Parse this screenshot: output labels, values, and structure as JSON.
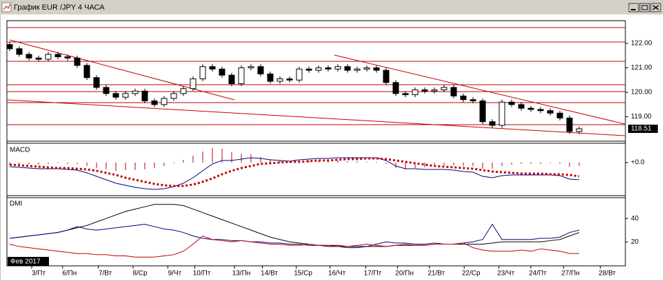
{
  "window_title": "График EUR /JPY  4 ЧАСА",
  "chart_data": [
    {
      "type": "candlestick",
      "up_color": "#ffffff",
      "down_color": "#000000",
      "xlim": [
        0,
        64
      ],
      "ylim": [
        118.06,
        122.87
      ],
      "yticks": [
        {
          "value": 122,
          "label": "122.00"
        },
        {
          "value": 121,
          "label": "121.00"
        },
        {
          "value": 120,
          "label": "120.00"
        },
        {
          "value": 119,
          "label": "119.00"
        }
      ],
      "open": [
        121.95,
        121.78,
        121.55,
        121.4,
        121.35,
        121.55,
        121.45,
        121.4,
        121.1,
        120.6,
        120.2,
        119.95,
        119.8,
        119.95,
        120.05,
        119.65,
        119.5,
        119.75,
        119.95,
        120.15,
        120.55,
        121.05,
        120.95,
        120.7,
        120.35,
        121.0,
        121.05,
        120.75,
        120.45,
        120.55,
        120.5,
        120.95,
        120.9,
        121.0,
        120.95,
        121.05,
        120.9,
        120.95,
        121.0,
        120.9,
        120.4,
        119.95,
        119.9,
        120.1,
        120.05,
        120.1,
        120.2,
        119.85,
        119.7,
        119.65,
        118.8,
        118.65,
        119.6,
        119.5,
        119.35,
        119.3,
        119.25,
        119.15,
        118.95,
        118.4
      ],
      "high": [
        122.05,
        121.88,
        121.65,
        121.5,
        121.65,
        121.65,
        121.55,
        121.5,
        121.2,
        120.7,
        120.3,
        120.05,
        120.05,
        120.15,
        120.15,
        119.75,
        119.85,
        120.05,
        120.25,
        120.65,
        121.15,
        121.15,
        121.05,
        120.8,
        121.1,
        121.15,
        121.15,
        120.85,
        120.65,
        120.65,
        121.05,
        121.05,
        121.1,
        121.1,
        121.15,
        121.15,
        121.05,
        121.1,
        121.1,
        121.0,
        120.5,
        120.05,
        120.2,
        120.2,
        120.2,
        120.3,
        120.3,
        119.95,
        119.8,
        119.75,
        118.9,
        119.7,
        119.7,
        119.6,
        119.45,
        119.4,
        119.35,
        119.25,
        119.05,
        118.61
      ],
      "low": [
        121.68,
        121.45,
        121.3,
        121.25,
        121.25,
        121.35,
        121.3,
        121.0,
        120.5,
        120.1,
        119.85,
        119.7,
        119.7,
        119.85,
        119.55,
        119.4,
        119.4,
        119.65,
        119.85,
        120.05,
        120.45,
        120.85,
        120.6,
        120.25,
        120.25,
        120.9,
        120.65,
        120.35,
        120.35,
        120.4,
        120.4,
        120.8,
        120.8,
        120.85,
        120.85,
        120.8,
        120.8,
        120.85,
        120.8,
        120.3,
        119.85,
        119.8,
        119.8,
        119.95,
        119.95,
        120.0,
        119.75,
        119.6,
        119.55,
        118.7,
        118.55,
        118.55,
        119.4,
        119.25,
        119.2,
        119.15,
        119.05,
        118.85,
        118.3,
        118.3
      ],
      "close": [
        121.78,
        121.55,
        121.4,
        121.35,
        121.55,
        121.45,
        121.4,
        121.1,
        120.6,
        120.2,
        119.95,
        119.8,
        119.95,
        120.05,
        119.65,
        119.5,
        119.75,
        119.95,
        120.15,
        120.55,
        121.05,
        120.95,
        120.7,
        120.35,
        121.0,
        121.05,
        120.75,
        120.45,
        120.55,
        120.5,
        120.95,
        120.9,
        121.0,
        120.95,
        121.05,
        120.9,
        120.95,
        121.0,
        120.9,
        120.4,
        119.95,
        119.9,
        120.1,
        120.05,
        120.1,
        120.2,
        119.85,
        119.7,
        119.65,
        118.8,
        118.65,
        119.6,
        119.5,
        119.35,
        119.3,
        119.25,
        119.15,
        118.95,
        118.4,
        118.51
      ]
    },
    {
      "type": "line",
      "title": "MACD",
      "ylim": [
        -0.46,
        0.24
      ],
      "yticks": [
        {
          "value": 0,
          "label": "+0.0"
        }
      ],
      "histogram": {
        "color": "#c00000",
        "values": [
          -0.03,
          -0.03,
          -0.03,
          -0.03,
          -0.02,
          -0.01,
          -0.02,
          -0.02,
          -0.05,
          -0.08,
          -0.1,
          -0.12,
          -0.11,
          -0.11,
          -0.1,
          -0.08,
          -0.05,
          -0.01,
          0.04,
          0.1,
          0.16,
          0.21,
          0.2,
          0.15,
          0.13,
          0.12,
          0.08,
          0.05,
          0.03,
          0.01,
          0.03,
          0.03,
          0.03,
          0.03,
          0.03,
          0.02,
          0.02,
          0.01,
          0.01,
          -0.02,
          -0.08,
          -0.1,
          -0.08,
          -0.07,
          -0.05,
          -0.04,
          -0.04,
          -0.05,
          -0.05,
          -0.09,
          -0.09,
          -0.05,
          -0.03,
          -0.02,
          -0.02,
          -0.02,
          -0.01,
          -0.02,
          -0.06,
          -0.05
        ]
      },
      "series": [
        {
          "color": "#000080",
          "values": [
            -0.06,
            -0.07,
            -0.08,
            -0.09,
            -0.09,
            -0.09,
            -0.1,
            -0.11,
            -0.15,
            -0.2,
            -0.25,
            -0.3,
            -0.33,
            -0.36,
            -0.38,
            -0.39,
            -0.38,
            -0.35,
            -0.3,
            -0.22,
            -0.12,
            -0.02,
            0.03,
            0.03,
            0.05,
            0.07,
            0.06,
            0.04,
            0.03,
            0.02,
            0.04,
            0.05,
            0.06,
            0.06,
            0.07,
            0.07,
            0.07,
            0.07,
            0.07,
            0.03,
            -0.05,
            -0.09,
            -0.09,
            -0.1,
            -0.1,
            -0.1,
            -0.11,
            -0.13,
            -0.14,
            -0.2,
            -0.22,
            -0.19,
            -0.18,
            -0.18,
            -0.18,
            -0.18,
            -0.18,
            -0.19,
            -0.24,
            -0.25
          ]
        },
        {
          "color": "#c00000",
          "dotted": true,
          "values": [
            -0.03,
            -0.04,
            -0.05,
            -0.06,
            -0.07,
            -0.08,
            -0.08,
            -0.09,
            -0.1,
            -0.12,
            -0.15,
            -0.18,
            -0.22,
            -0.25,
            -0.28,
            -0.31,
            -0.33,
            -0.34,
            -0.34,
            -0.32,
            -0.28,
            -0.23,
            -0.17,
            -0.12,
            -0.08,
            -0.05,
            -0.02,
            -0.01,
            0,
            0.01,
            0.01,
            0.02,
            0.03,
            0.03,
            0.04,
            0.05,
            0.05,
            0.06,
            0.06,
            0.05,
            0.03,
            0.01,
            -0.01,
            -0.03,
            -0.05,
            -0.06,
            -0.07,
            -0.08,
            -0.09,
            -0.11,
            -0.13,
            -0.14,
            -0.15,
            -0.16,
            -0.16,
            -0.16,
            -0.17,
            -0.17,
            -0.18,
            -0.2
          ]
        }
      ]
    },
    {
      "type": "line",
      "title": "DMI",
      "ylim": [
        3,
        56
      ],
      "yticks": [
        40,
        20
      ],
      "period_label": "Фев 2017",
      "xticks": [
        {
          "value": 3,
          "label": "3/Пт"
        },
        {
          "value": 6.2,
          "label": "6/Пн"
        },
        {
          "value": 9.9,
          "label": "7/Вт"
        },
        {
          "value": 13.5,
          "label": "8/Ср"
        },
        {
          "value": 17.1,
          "label": "9/Чт"
        },
        {
          "value": 19.9,
          "label": "10/Пт"
        },
        {
          "value": 24,
          "label": "13/Пн"
        },
        {
          "value": 26.9,
          "label": "14/Вт"
        },
        {
          "value": 30.4,
          "label": "15/Ср"
        },
        {
          "value": 33.9,
          "label": "16/Чт"
        },
        {
          "value": 37.6,
          "label": "17/Пт"
        },
        {
          "value": 40.9,
          "label": "20/Пн"
        },
        {
          "value": 44.2,
          "label": "21/Вт"
        },
        {
          "value": 47.8,
          "label": "22/Ср"
        },
        {
          "value": 51.4,
          "label": "23/Чт"
        },
        {
          "value": 54.7,
          "label": "24/Пт"
        },
        {
          "value": 58.1,
          "label": "27/Пн"
        },
        {
          "value": 61.9,
          "label": "28/Вт"
        }
      ],
      "series": [
        {
          "color": "#000000",
          "values": [
            23,
            24,
            25,
            26,
            27,
            28,
            30,
            32,
            34,
            37,
            40,
            43,
            46,
            48,
            50,
            52,
            52,
            52,
            51,
            48,
            45,
            42,
            39,
            36,
            33,
            30,
            27,
            24,
            22,
            20,
            19,
            18,
            17,
            17,
            17,
            16,
            16,
            16,
            16,
            16,
            17,
            17,
            17,
            17,
            18,
            18,
            18,
            18,
            18,
            18,
            19,
            20,
            20,
            20,
            20,
            20,
            21,
            22,
            25,
            28
          ]
        },
        {
          "color": "#000080",
          "values": [
            23,
            24,
            25,
            26,
            27,
            28,
            30,
            33,
            31,
            30,
            31,
            32,
            33,
            34,
            35,
            33,
            31,
            30,
            28,
            25,
            23,
            22,
            22,
            21,
            21,
            20,
            20,
            19,
            19,
            18,
            18,
            17,
            17,
            16,
            16,
            15,
            15,
            16,
            18,
            20,
            19,
            19,
            18,
            18,
            19,
            18,
            18,
            19,
            20,
            22,
            35,
            22,
            22,
            22,
            22,
            23,
            23,
            24,
            28,
            30
          ]
        },
        {
          "color": "#c00000",
          "values": [
            18,
            16,
            15,
            14,
            13,
            12,
            11,
            10,
            10,
            9,
            9,
            8,
            8,
            7,
            7,
            7,
            8,
            9,
            12,
            18,
            25,
            22,
            21,
            20,
            21,
            20,
            19,
            18,
            18,
            17,
            17,
            18,
            17,
            17,
            16,
            16,
            17,
            18,
            17,
            16,
            17,
            18,
            17,
            17,
            18,
            18,
            18,
            19,
            15,
            13,
            12,
            12,
            12,
            13,
            12,
            14,
            13,
            12,
            10,
            10
          ]
        }
      ]
    }
  ]
}
